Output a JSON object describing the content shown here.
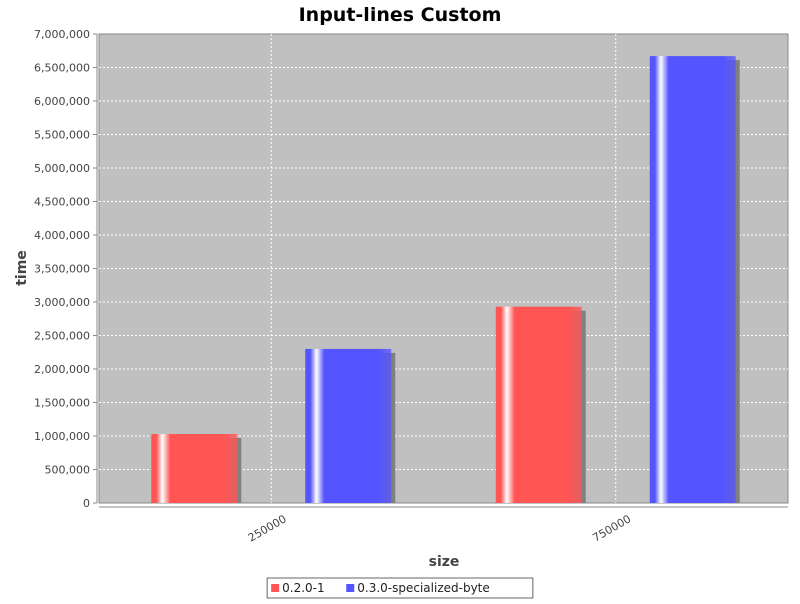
{
  "chart_data": {
    "type": "bar",
    "title": "Input-lines Custom",
    "xlabel": "size",
    "ylabel": "time",
    "categories": [
      "250000",
      "750000"
    ],
    "series": [
      {
        "name": "0.2.0-1",
        "values": [
          1030000,
          2930000
        ],
        "color": "#ff5555"
      },
      {
        "name": "0.3.0-specialized-byte",
        "values": [
          2300000,
          6670000
        ],
        "color": "#5555ff"
      }
    ],
    "ylim": [
      0,
      7000000
    ],
    "y_ticks": [
      "0",
      "500,000",
      "1,000,000",
      "1,500,000",
      "2,000,000",
      "2,500,000",
      "3,000,000",
      "3,500,000",
      "4,000,000",
      "4,500,000",
      "5,000,000",
      "5,500,000",
      "6,000,000",
      "6,500,000",
      "7,000,000"
    ],
    "grid": true,
    "legend_position": "bottom-center",
    "plot_background": "#c0c0c0",
    "gridline_color": "#ffffff"
  }
}
